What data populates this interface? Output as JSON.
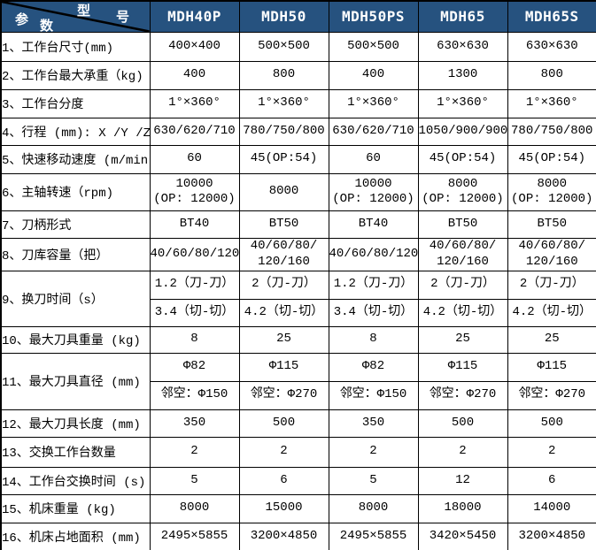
{
  "header": {
    "corner": {
      "top_label_chars": [
        "型",
        "号"
      ],
      "bottom_label_chars": [
        "参",
        "数"
      ],
      "top_label": "型号",
      "bottom_label": "参数"
    },
    "models": [
      "MDH40P",
      "MDH50",
      "MDH50PS",
      "MDH65",
      "MDH65S"
    ],
    "header_bg_color": "#26527F",
    "header_text_color": "#ffffff"
  },
  "rows": [
    {
      "label": "1、工作台尺寸(mm)",
      "values": [
        "400×400",
        "500×500",
        "500×500",
        "630×630",
        "630×630"
      ]
    },
    {
      "label": "2、工作台最大承重（kg)",
      "values": [
        "400",
        "800",
        "400",
        "1300",
        "800"
      ]
    },
    {
      "label": "3、工作台分度",
      "values": [
        "1°×360°",
        "1°×360°",
        "1°×360°",
        "1°×360°",
        "1°×360°"
      ]
    },
    {
      "label": "4、行程 (mm): X /Y /Z",
      "values": [
        "630/620/710",
        "780/750/800",
        "630/620/710",
        "1050/900/900",
        "780/750/800"
      ]
    },
    {
      "label": "5、快速移动速度 (m/min)",
      "values": [
        "60",
        "45(OP:54)",
        "60",
        "45(OP:54)",
        "45(OP:54)"
      ]
    },
    {
      "label": "6、主轴转速（rpm)",
      "values": [
        "10000\n(OP: 12000)",
        "8000",
        "10000\n(OP: 12000)",
        "8000\n(OP: 12000)",
        "8000\n(OP: 12000)"
      ]
    },
    {
      "label": "7、刀柄形式",
      "values": [
        "BT40",
        "BT50",
        "BT40",
        "BT50",
        "BT50"
      ]
    },
    {
      "label": "8、刀库容量（把）",
      "values": [
        "40/60/80/120",
        "40/60/80/\n120/160",
        "40/60/80/120",
        "40/60/80/\n120/160",
        "40/60/80/\n120/160"
      ]
    },
    {
      "label": "9、换刀时间（s）",
      "subrows": [
        [
          "1.2（刀-刀）",
          "2（刀-刀）",
          "1.2（刀-刀）",
          "2（刀-刀）",
          "2（刀-刀）"
        ],
        [
          "3.4（切-切）",
          "4.2（切-切）",
          "3.4（切-切）",
          "4.2（切-切）",
          "4.2（切-切）"
        ]
      ]
    },
    {
      "label": "10、最大刀具重量 (kg)",
      "values": [
        "8",
        "25",
        "8",
        "25",
        "25"
      ]
    },
    {
      "label": "11、最大刀具直径 (mm)",
      "subrows": [
        [
          "Φ82",
          "Φ115",
          "Φ82",
          "Φ115",
          "Φ115"
        ],
        [
          "邻空：Φ150",
          "邻空：Φ270",
          "邻空：Φ150",
          "邻空：Φ270",
          "邻空：Φ270"
        ]
      ]
    },
    {
      "label": "12、最大刀具长度 (mm)",
      "values": [
        "350",
        "500",
        "350",
        "500",
        "500"
      ]
    },
    {
      "label": "13、交换工作台数量",
      "values": [
        "2",
        "2",
        "2",
        "2",
        "2"
      ]
    },
    {
      "label": "14、工作台交换时间 (s)",
      "values": [
        "5",
        "6",
        "5",
        "12",
        "6"
      ]
    },
    {
      "label": "15、机床重量 (kg)",
      "values": [
        "8000",
        "15000",
        "8000",
        "18000",
        "14000"
      ]
    },
    {
      "label": "16、机床占地面积 (mm)",
      "values": [
        "2495×5855",
        "3200×4850",
        "2495×5855",
        "3420×5450",
        "3200×4850"
      ]
    }
  ]
}
